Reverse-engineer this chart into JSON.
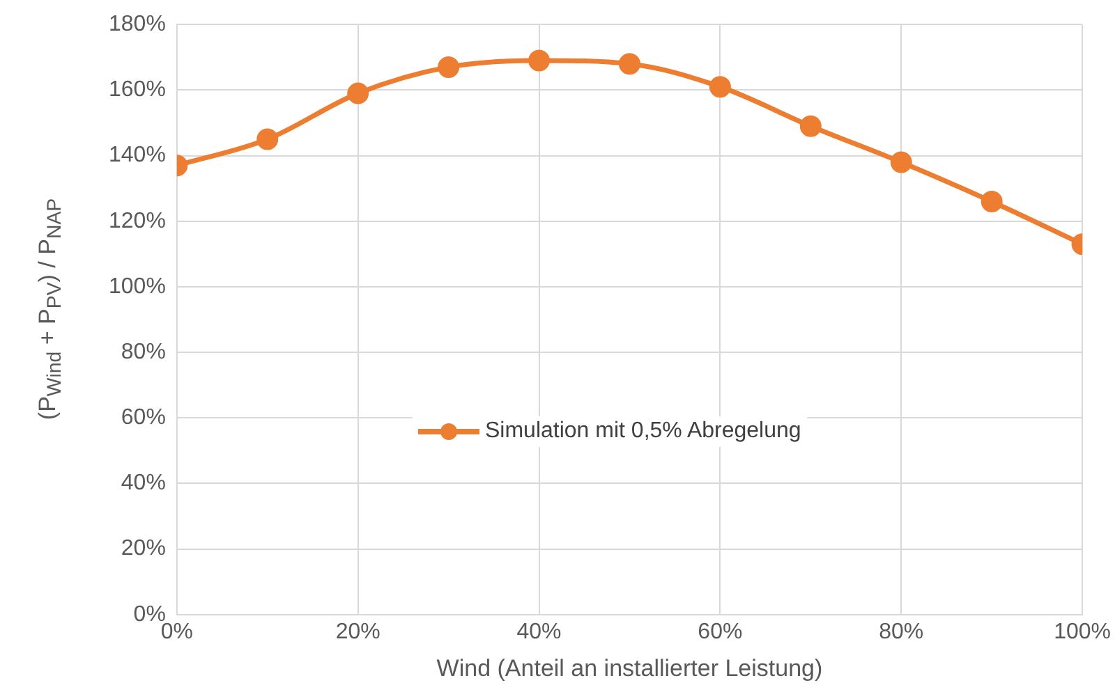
{
  "chart_data": {
    "type": "line",
    "xlabel": "Wind (Anteil an installierter Leistung)",
    "ylabel": "(P$_{Wind}$ + P$_{PV}$) / P$_{NAP}$",
    "x": [
      0,
      10,
      20,
      30,
      40,
      50,
      60,
      70,
      80,
      90,
      100
    ],
    "series": [
      {
        "name": "Simulation mit 0,5% Abregelung",
        "color": "#ed7d31",
        "values": [
          137,
          145,
          159,
          167,
          169,
          168,
          161,
          149,
          138,
          126,
          113
        ]
      }
    ],
    "xlim": [
      0,
      100
    ],
    "xticks": [
      {
        "value": 0,
        "label": "0%"
      },
      {
        "value": 20,
        "label": "20%"
      },
      {
        "value": 40,
        "label": "40%"
      },
      {
        "value": 60,
        "label": "60%"
      },
      {
        "value": 80,
        "label": "80%"
      },
      {
        "value": 100,
        "label": "100%"
      }
    ],
    "ylim": [
      0,
      180
    ],
    "yticks": [
      {
        "value": 0,
        "label": "0%"
      },
      {
        "value": 20,
        "label": "20%"
      },
      {
        "value": 40,
        "label": "40%"
      },
      {
        "value": 60,
        "label": "60%"
      },
      {
        "value": 80,
        "label": "80%"
      },
      {
        "value": 100,
        "label": "100%"
      },
      {
        "value": 120,
        "label": "120%"
      },
      {
        "value": 140,
        "label": "140%"
      },
      {
        "value": 160,
        "label": "160%"
      },
      {
        "value": 180,
        "label": "180%"
      }
    ],
    "grid": true,
    "legend": "center",
    "marker": "circle",
    "line_style": "solid"
  }
}
